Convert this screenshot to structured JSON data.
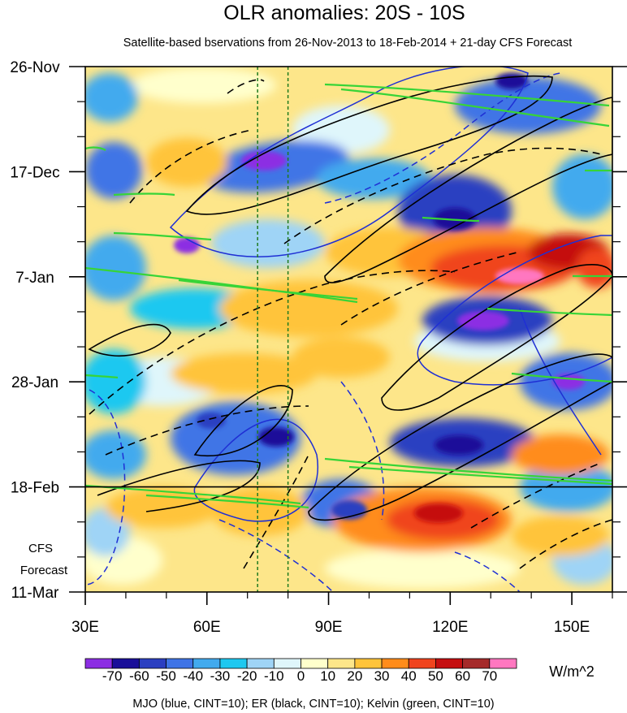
{
  "chart_data": {
    "type": "heatmap",
    "title": "OLR anomalies: 20S - 10S",
    "subtitle": "Satellite-based bservations from 26-Nov-2013 to 18-Feb-2014 + 21-day CFS Forecast",
    "x_axis": {
      "range": [
        30,
        160
      ],
      "tick_values": [
        30,
        60,
        90,
        120,
        150
      ],
      "tick_labels": [
        "30E",
        "60E",
        "90E",
        "120E",
        "150E"
      ]
    },
    "y_axis": {
      "range": [
        "26-Nov-2013",
        "11-Mar-2014"
      ],
      "tick_labels": [
        "26-Nov",
        "17-Dec",
        "7-Jan",
        "28-Jan",
        "18-Feb",
        "11-Mar"
      ],
      "tick_day_offsets": [
        0,
        21,
        42,
        63,
        84,
        105
      ]
    },
    "forecast_label": [
      "CFS",
      "Forecast"
    ],
    "observation_end_day_offset": 84,
    "reference_longitudes": [
      72.5,
      80
    ],
    "colorbar": {
      "unit": "W/m^2",
      "labels": [
        "-70",
        "-60",
        "-50",
        "-40",
        "-30",
        "-20",
        "-10",
        "0",
        "10",
        "20",
        "30",
        "40",
        "50",
        "60",
        "70"
      ],
      "colors": [
        "#8c2ee3",
        "#1a0f99",
        "#2b3fc1",
        "#3f74e6",
        "#42aaee",
        "#1ec8f0",
        "#9fd4f6",
        "#dff6fb",
        "#ffffcc",
        "#fde68a",
        "#ffc43a",
        "#ff8c1a",
        "#f0441e",
        "#c50e10",
        "#a52a2a",
        "#ff77c0"
      ]
    },
    "legend_note": "MJO (blue, CINT=10); ER (black, CINT=10); Kelvin (green, CINT=10)",
    "filter_colors": {
      "mjo": "#1f2fd4",
      "er": "#000000",
      "kelvin": "#37d437"
    }
  }
}
